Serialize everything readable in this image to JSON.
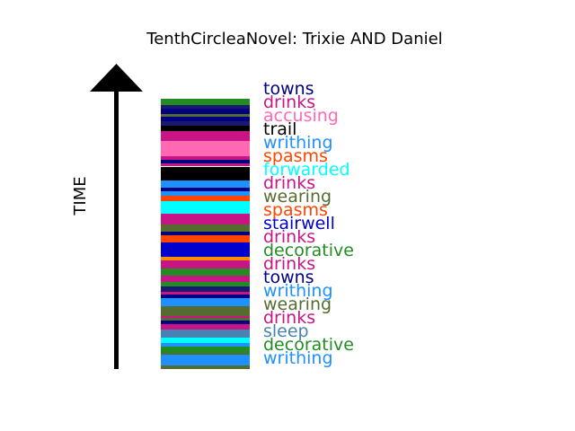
{
  "chart_data": {
    "type": "bar",
    "title": "TenthCircleaNovel: Trixie AND Daniel",
    "ylabel": "TIME",
    "stripes": [
      {
        "c": "#556b2f",
        "h": 4
      },
      {
        "c": "#1e90ff",
        "h": 12
      },
      {
        "c": "#556b2f",
        "h": 2
      },
      {
        "c": "#228b22",
        "h": 7
      },
      {
        "c": "#1e90ff",
        "h": 4
      },
      {
        "c": "#00ffff",
        "h": 6
      },
      {
        "c": "#4682b4",
        "h": 9
      },
      {
        "c": "#c71585",
        "h": 6
      },
      {
        "c": "#000080",
        "h": 4
      },
      {
        "c": "#556b2f",
        "h": 3
      },
      {
        "c": "#c71585",
        "h": 2
      },
      {
        "c": "#556b2f",
        "h": 11
      },
      {
        "c": "#1e90ff",
        "h": 9
      },
      {
        "c": "#000080",
        "h": 4
      },
      {
        "c": "#c71585",
        "h": 3
      },
      {
        "c": "#191970",
        "h": 6
      },
      {
        "c": "#228b22",
        "h": 5
      },
      {
        "c": "#c71585",
        "h": 7
      },
      {
        "c": "#228b22",
        "h": 8
      },
      {
        "c": "#c71585",
        "h": 9
      },
      {
        "c": "#ff8c00",
        "h": 4
      },
      {
        "c": "#0000cd",
        "h": 16
      },
      {
        "c": "#ff4500",
        "h": 8
      },
      {
        "c": "#000080",
        "h": 4
      },
      {
        "c": "#556b2f",
        "h": 8
      },
      {
        "c": "#c71585",
        "h": 12
      },
      {
        "c": "#00ffff",
        "h": 14
      },
      {
        "c": "#ff4500",
        "h": 6
      },
      {
        "c": "#1e90ff",
        "h": 5
      },
      {
        "c": "#000080",
        "h": 4
      },
      {
        "c": "#1e90ff",
        "h": 8
      },
      {
        "c": "#000000",
        "h": 15
      },
      {
        "c": "#ffffff",
        "h": 1
      },
      {
        "c": "#c71585",
        "h": 3
      },
      {
        "c": "#000080",
        "h": 4
      },
      {
        "c": "#c71585",
        "h": 4
      },
      {
        "c": "#ff69b4",
        "h": 17
      },
      {
        "c": "#c71585",
        "h": 11
      },
      {
        "c": "#000000",
        "h": 6
      },
      {
        "c": "#191970",
        "h": 5
      },
      {
        "c": "#000080",
        "h": 5
      },
      {
        "c": "#556b2f",
        "h": 3
      },
      {
        "c": "#000080",
        "h": 6
      },
      {
        "c": "#191970",
        "h": 4
      },
      {
        "c": "#228b22",
        "h": 7
      }
    ],
    "labels": [
      {
        "text": "writhing",
        "c": "#1e90ff"
      },
      {
        "text": "decorative",
        "c": "#228b22"
      },
      {
        "text": "sleep",
        "c": "#4682b4"
      },
      {
        "text": "drinks",
        "c": "#c71585"
      },
      {
        "text": "wearing",
        "c": "#556b2f"
      },
      {
        "text": "writhing",
        "c": "#1e90ff"
      },
      {
        "text": "towns",
        "c": "#000080"
      },
      {
        "text": "drinks",
        "c": "#c71585"
      },
      {
        "text": "decorative",
        "c": "#228b22"
      },
      {
        "text": "drinks",
        "c": "#c71585"
      },
      {
        "text": "stairwell",
        "c": "#0000cd"
      },
      {
        "text": "spasms",
        "c": "#ff4500"
      },
      {
        "text": "wearing",
        "c": "#556b2f"
      },
      {
        "text": "drinks",
        "c": "#c71585"
      },
      {
        "text": "forwarded",
        "c": "#00ffff"
      },
      {
        "text": "spasms",
        "c": "#ff4500"
      },
      {
        "text": "writhing",
        "c": "#1e90ff"
      },
      {
        "text": "trail",
        "c": "#000000"
      },
      {
        "text": "accusing",
        "c": "#ff69b4"
      },
      {
        "text": "drinks",
        "c": "#c71585"
      },
      {
        "text": "towns",
        "c": "#000080"
      }
    ]
  }
}
